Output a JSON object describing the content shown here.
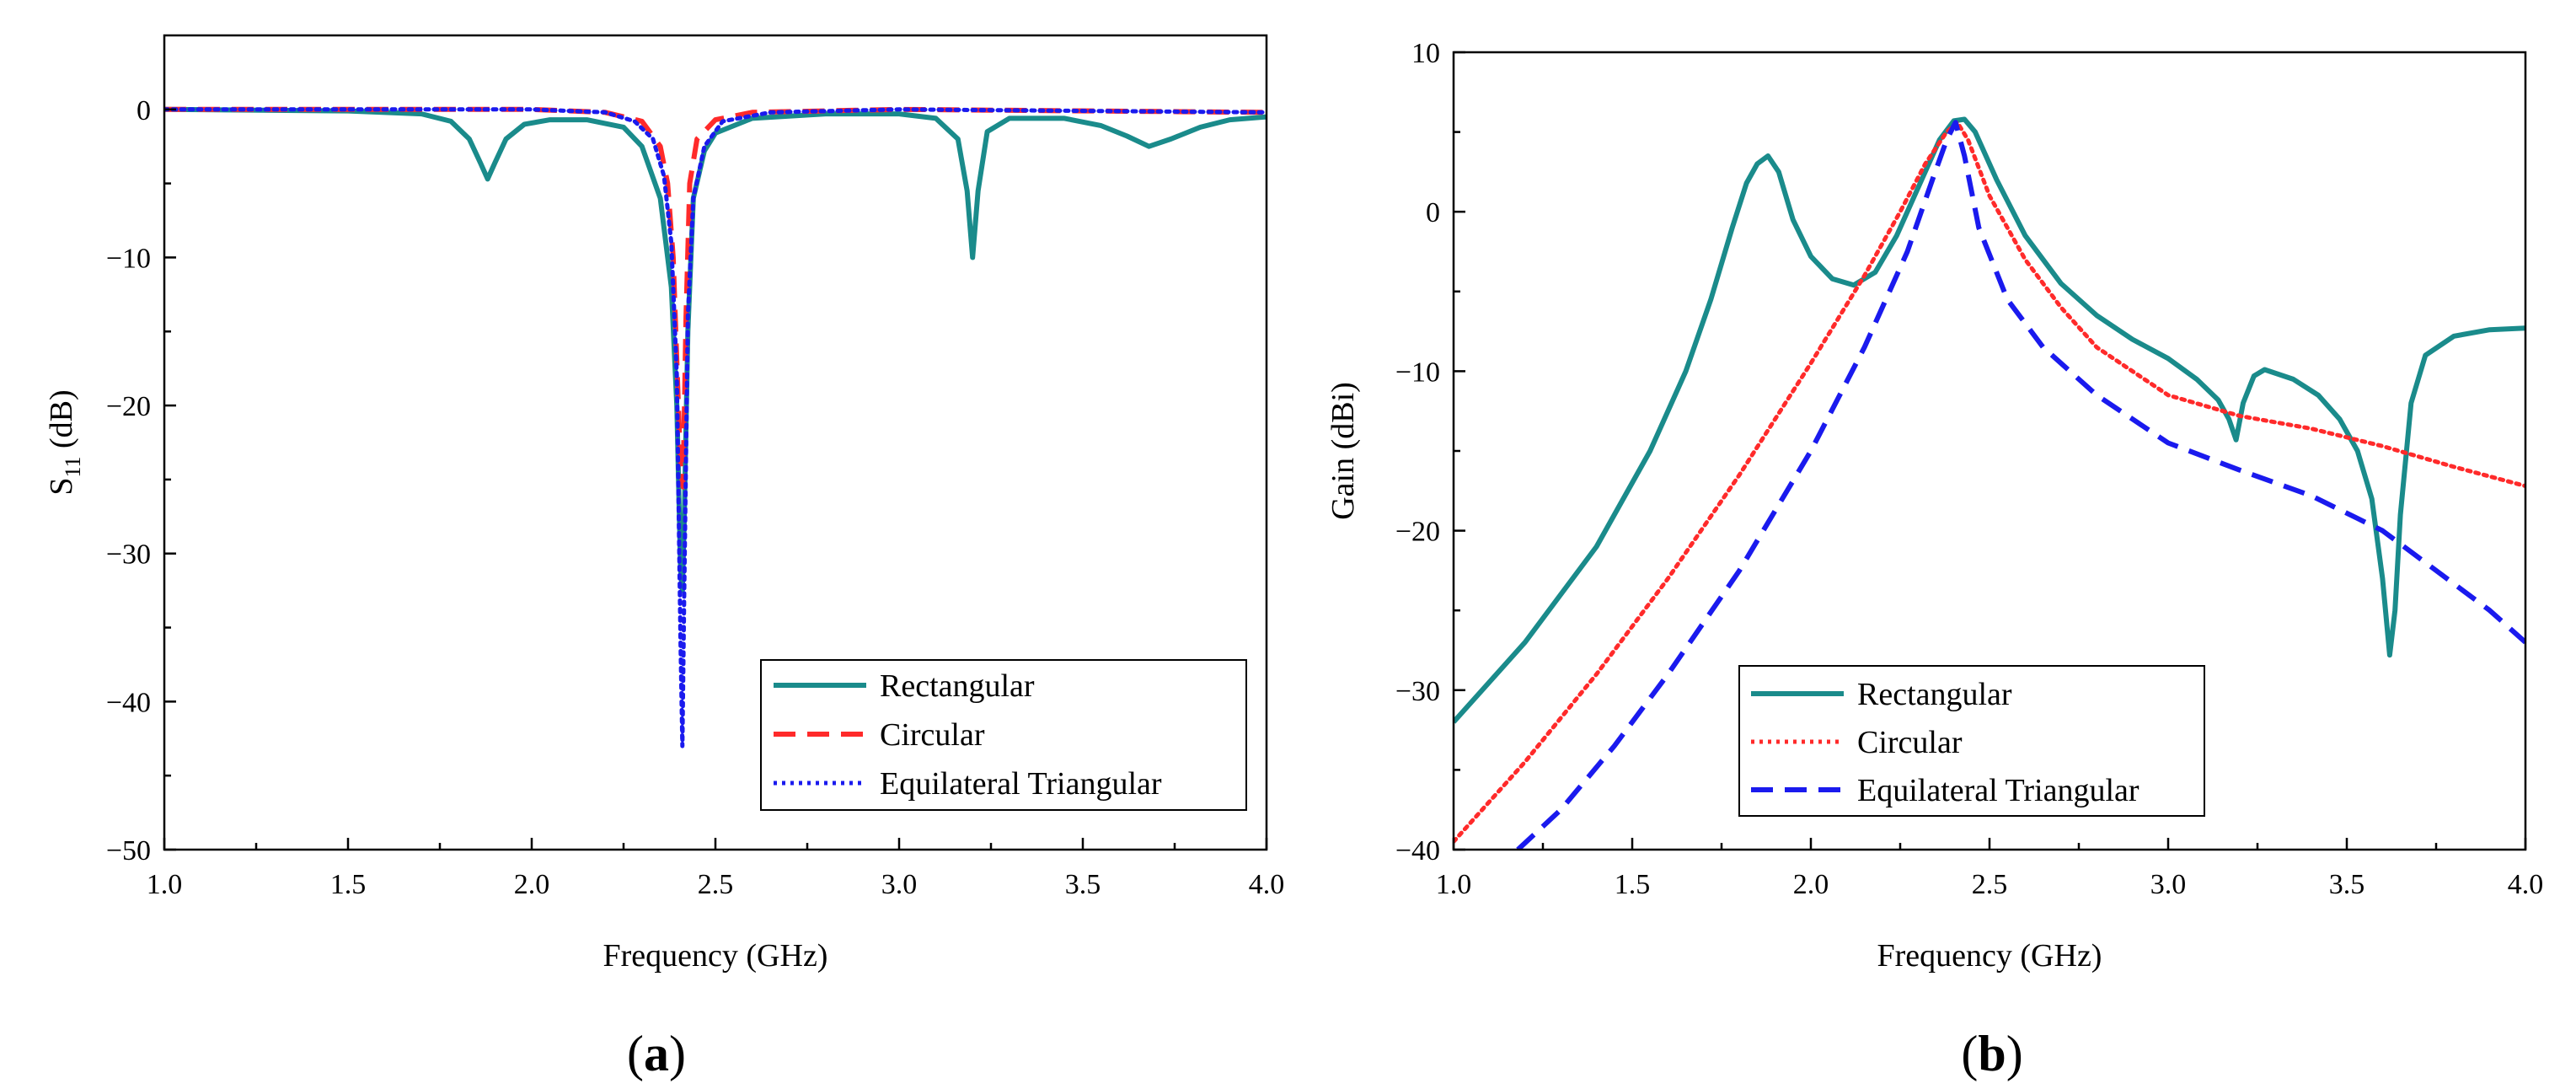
{
  "chart_data": [
    {
      "type": "line",
      "panel_label_open": "(",
      "panel_label_letter": "a",
      "panel_label_close": ")",
      "xlabel": "Frequency (GHz)",
      "ylabel_main": "S",
      "ylabel_sub": "11",
      "ylabel_unit": " (dB)",
      "xlim": [
        1.0,
        4.0
      ],
      "ylim": [
        -50,
        5
      ],
      "x_ticks": [
        1.0,
        1.5,
        2.0,
        2.5,
        3.0,
        3.5,
        4.0
      ],
      "x_tick_labels": [
        "1.0",
        "1.5",
        "2.0",
        "2.5",
        "3.0",
        "3.5",
        "4.0"
      ],
      "y_ticks": [
        0,
        -10,
        -20,
        -30,
        -40,
        -50
      ],
      "y_tick_labels": [
        "0",
        "−10",
        "−20",
        "−30",
        "−40",
        "−50"
      ],
      "legend_position": "bottom-right",
      "series": [
        {
          "name": "Rectangular",
          "color": "#1a8b8b",
          "style": "solid",
          "x": [
            1.0,
            1.5,
            1.7,
            1.78,
            1.83,
            1.86,
            1.88,
            1.9,
            1.93,
            1.98,
            2.05,
            2.15,
            2.25,
            2.3,
            2.35,
            2.38,
            2.395,
            2.405,
            2.41,
            2.415,
            2.425,
            2.44,
            2.47,
            2.5,
            2.6,
            2.8,
            3.0,
            3.1,
            3.16,
            3.185,
            3.2,
            3.215,
            3.24,
            3.3,
            3.45,
            3.55,
            3.62,
            3.68,
            3.74,
            3.82,
            3.9,
            4.0
          ],
          "values": [
            0,
            -0.1,
            -0.3,
            -0.8,
            -2.0,
            -3.6,
            -4.7,
            -3.6,
            -2.0,
            -1.0,
            -0.7,
            -0.7,
            -1.2,
            -2.5,
            -6.0,
            -12.0,
            -20.0,
            -31.0,
            -32.5,
            -28.0,
            -15.0,
            -6.0,
            -2.8,
            -1.6,
            -0.6,
            -0.3,
            -0.3,
            -0.6,
            -2.0,
            -5.5,
            -10.0,
            -5.5,
            -1.5,
            -0.6,
            -0.6,
            -1.1,
            -1.8,
            -2.5,
            -2.0,
            -1.2,
            -0.7,
            -0.5
          ]
        },
        {
          "name": "Circular",
          "color": "#ff2a2a",
          "style": "dashed",
          "x": [
            1.0,
            2.0,
            2.2,
            2.3,
            2.35,
            2.37,
            2.385,
            2.395,
            2.405,
            2.412,
            2.42,
            2.43,
            2.45,
            2.5,
            2.6,
            3.0,
            4.0
          ],
          "values": [
            0,
            0,
            -0.2,
            -0.8,
            -2.5,
            -5.0,
            -10.0,
            -17.0,
            -24.0,
            -25.5,
            -14.0,
            -5.0,
            -2.0,
            -0.7,
            -0.2,
            0,
            -0.2
          ]
        },
        {
          "name": "Equilateral Triangular",
          "color": "#1a1aee",
          "style": "dotted",
          "x": [
            1.0,
            2.0,
            2.2,
            2.28,
            2.33,
            2.36,
            2.38,
            2.395,
            2.405,
            2.41,
            2.415,
            2.425,
            2.44,
            2.47,
            2.52,
            2.65,
            3.0,
            4.0
          ],
          "values": [
            0,
            0,
            -0.2,
            -0.8,
            -2.0,
            -4.5,
            -9.0,
            -18.0,
            -36.0,
            -43.0,
            -33.0,
            -14.0,
            -6.0,
            -2.5,
            -0.8,
            -0.2,
            0,
            -0.2
          ]
        }
      ]
    },
    {
      "type": "line",
      "panel_label_open": "(",
      "panel_label_letter": "b",
      "panel_label_close": ")",
      "xlabel": "Frequency (GHz)",
      "ylabel": "Gain (dBi)",
      "xlim": [
        1.0,
        4.0
      ],
      "ylim": [
        -40,
        10
      ],
      "x_ticks": [
        1.0,
        1.5,
        2.0,
        2.5,
        3.0,
        3.5,
        4.0
      ],
      "x_tick_labels": [
        "1.0",
        "1.5",
        "2.0",
        "2.5",
        "3.0",
        "3.5",
        "4.0"
      ],
      "y_ticks": [
        10,
        0,
        -10,
        -20,
        -30,
        -40
      ],
      "y_tick_labels": [
        "10",
        "0",
        "−10",
        "−20",
        "−30",
        "−40"
      ],
      "legend_position": "bottom-center",
      "series": [
        {
          "name": "Rectangular",
          "color": "#1a8b8b",
          "style": "solid",
          "x": [
            1.0,
            1.2,
            1.4,
            1.55,
            1.65,
            1.72,
            1.78,
            1.82,
            1.85,
            1.88,
            1.91,
            1.95,
            2.0,
            2.06,
            2.12,
            2.18,
            2.24,
            2.3,
            2.36,
            2.4,
            2.43,
            2.46,
            2.52,
            2.6,
            2.7,
            2.8,
            2.9,
            3.0,
            3.08,
            3.14,
            3.17,
            3.19,
            3.21,
            3.24,
            3.27,
            3.35,
            3.42,
            3.48,
            3.53,
            3.57,
            3.6,
            3.62,
            3.635,
            3.65,
            3.68,
            3.72,
            3.8,
            3.9,
            4.0
          ],
          "values": [
            -32.0,
            -27.0,
            -21.0,
            -15.0,
            -10.0,
            -5.5,
            -1.0,
            1.8,
            3.0,
            3.5,
            2.5,
            -0.5,
            -2.8,
            -4.2,
            -4.6,
            -3.8,
            -1.5,
            1.5,
            4.5,
            5.7,
            5.8,
            5.0,
            2.0,
            -1.5,
            -4.5,
            -6.5,
            -8.0,
            -9.2,
            -10.5,
            -11.8,
            -13.0,
            -14.3,
            -12.0,
            -10.3,
            -9.9,
            -10.5,
            -11.5,
            -13.0,
            -15.0,
            -18.0,
            -23.0,
            -27.8,
            -25.0,
            -19.0,
            -12.0,
            -9.0,
            -7.8,
            -7.4,
            -7.3
          ]
        },
        {
          "name": "Circular",
          "color": "#ff2a2a",
          "style": "dotted",
          "x": [
            1.0,
            1.2,
            1.4,
            1.6,
            1.8,
            2.0,
            2.15,
            2.25,
            2.32,
            2.38,
            2.41,
            2.44,
            2.5,
            2.6,
            2.7,
            2.8,
            3.0,
            3.2,
            3.4,
            3.6,
            3.8,
            4.0
          ],
          "values": [
            -39.5,
            -34.5,
            -29.0,
            -23.0,
            -16.5,
            -9.5,
            -4.0,
            0.0,
            3.0,
            5.0,
            5.6,
            4.5,
            1.0,
            -3.0,
            -6.0,
            -8.5,
            -11.5,
            -12.8,
            -13.6,
            -14.7,
            -16.0,
            -17.2
          ]
        },
        {
          "name": "Equilateral Triangular",
          "color": "#1a1aee",
          "style": "dashed",
          "x": [
            1.18,
            1.3,
            1.45,
            1.6,
            1.8,
            2.0,
            2.15,
            2.27,
            2.34,
            2.38,
            2.405,
            2.43,
            2.47,
            2.55,
            2.65,
            2.8,
            3.0,
            3.2,
            3.4,
            3.6,
            3.75,
            3.9,
            4.0
          ],
          "values": [
            -40.0,
            -37.5,
            -33.5,
            -29.0,
            -22.5,
            -15.0,
            -8.5,
            -2.5,
            2.0,
            4.5,
            5.6,
            3.5,
            -1.0,
            -5.5,
            -8.5,
            -11.5,
            -14.5,
            -16.2,
            -17.8,
            -20.0,
            -22.5,
            -25.0,
            -27.0
          ]
        }
      ]
    }
  ]
}
